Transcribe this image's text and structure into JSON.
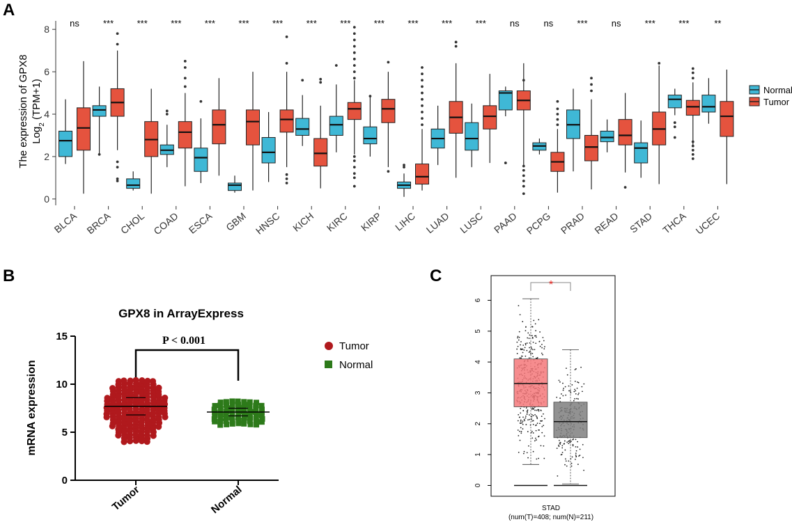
{
  "colors": {
    "normal_fill": "#3fb8d6",
    "tumor_fill": "#e5533e",
    "b_tumor": "#b0191d",
    "b_normal": "#2d7a1a",
    "c_tumor": "#f4787a",
    "c_normal": "#7f7f7f",
    "c_star": "#e8231f"
  },
  "chart_data": [
    {
      "panel": "A",
      "type": "box",
      "ylabel_line1": "The expression of GPX8",
      "ylabel_line2": "Log",
      "ylabel_sub": "2",
      "ylabel_rest": " (TPM+1)",
      "yticks": [
        0,
        2,
        4,
        6,
        8
      ],
      "ylim": [
        -0.3,
        8.4
      ],
      "legend": [
        "Normal",
        "Tumor"
      ],
      "categories": [
        "BLCA",
        "BRCA",
        "CHOL",
        "COAD",
        "ESCA",
        "GBM",
        "HNSC",
        "KICH",
        "KIRC",
        "KIRP",
        "LIHC",
        "LUAD",
        "LUSC",
        "PAAD",
        "PCPG",
        "PRAD",
        "READ",
        "STAD",
        "THCA",
        "UCEC"
      ],
      "significance": [
        "ns",
        "***",
        "***",
        "***",
        "***",
        "***",
        "***",
        "***",
        "***",
        "***",
        "***",
        "***",
        "***",
        "ns",
        "ns",
        "***",
        "ns",
        "***",
        "***",
        "**"
      ],
      "series": [
        {
          "name": "Normal",
          "boxes": [
            [
              1.65,
              2.0,
              2.75,
              3.2,
              4.7,
              []
            ],
            [
              2.1,
              3.9,
              4.2,
              4.4,
              5.3,
              [
                2.1
              ]
            ],
            [
              0.4,
              0.5,
              0.65,
              0.95,
              1.3,
              []
            ],
            [
              1.5,
              2.1,
              2.3,
              2.55,
              3.5,
              [
                4.0,
                4.15
              ]
            ],
            [
              0.75,
              1.3,
              1.95,
              2.4,
              3.8,
              [
                4.6
              ]
            ],
            [
              0.3,
              0.4,
              0.65,
              0.75,
              1.1,
              []
            ],
            [
              0.8,
              1.7,
              2.2,
              2.9,
              4.1,
              []
            ],
            [
              2.5,
              3.0,
              3.3,
              3.8,
              4.9,
              [
                5.6
              ]
            ],
            [
              2.2,
              3.0,
              3.5,
              3.9,
              5.4,
              [
                6.3
              ]
            ],
            [
              2.0,
              2.6,
              2.85,
              3.4,
              4.8,
              [
                4.85
              ]
            ],
            [
              0.1,
              0.5,
              0.65,
              0.8,
              1.2,
              [
                1.5,
                1.6
              ]
            ],
            [
              1.6,
              2.4,
              2.85,
              3.3,
              4.4,
              []
            ],
            [
              1.5,
              2.3,
              2.85,
              3.6,
              4.5,
              []
            ],
            [
              3.9,
              4.2,
              5.0,
              5.1,
              5.3,
              [
                1.7
              ]
            ],
            [
              2.1,
              2.3,
              2.5,
              2.65,
              2.85,
              []
            ],
            [
              1.3,
              2.85,
              3.5,
              4.2,
              5.2,
              []
            ],
            [
              2.2,
              2.7,
              2.9,
              3.2,
              3.75,
              []
            ],
            [
              1.0,
              1.7,
              2.4,
              2.65,
              3.7,
              []
            ],
            [
              3.95,
              4.3,
              4.7,
              4.9,
              5.2,
              [
                2.9,
                3.4,
                3.6
              ]
            ],
            [
              3.55,
              4.1,
              4.35,
              4.9,
              5.7,
              []
            ]
          ]
        },
        {
          "name": "Tumor",
          "boxes": [
            [
              0.25,
              2.3,
              3.35,
              4.3,
              6.5,
              []
            ],
            [
              2.3,
              3.9,
              4.55,
              5.2,
              7.0,
              [
                0.85,
                0.95,
                1.5,
                1.75,
                7.3,
                7.8
              ]
            ],
            [
              0.25,
              2.0,
              2.8,
              3.65,
              5.2,
              []
            ],
            [
              0.6,
              2.4,
              3.15,
              3.65,
              5.0,
              [
                5.3,
                5.7,
                6.2,
                6.5
              ]
            ],
            [
              1.1,
              2.6,
              3.5,
              4.2,
              5.7,
              []
            ],
            [
              0.4,
              2.55,
              3.65,
              4.2,
              6.0,
              []
            ],
            [
              1.5,
              3.15,
              3.75,
              4.2,
              6.0,
              [
                0.75,
                0.95,
                1.15,
                6.4,
                7.65
              ]
            ],
            [
              0.5,
              1.55,
              2.15,
              2.85,
              4.4,
              [
                5.5,
                5.65
              ]
            ],
            [
              2.1,
              3.75,
              4.25,
              4.55,
              5.6,
              [
                0.6,
                1.0,
                1.2,
                1.5,
                1.8,
                2.0,
                5.7,
                6.0,
                6.3,
                6.6,
                6.9,
                7.2,
                7.5,
                7.8,
                8.1
              ]
            ],
            [
              1.5,
              3.6,
              4.25,
              4.7,
              6.0,
              [
                1.3,
                6.45
              ]
            ],
            [
              0.4,
              0.7,
              1.05,
              1.65,
              3.3,
              [
                3.5,
                3.8,
                4.1,
                4.4,
                4.7,
                5.0,
                5.3,
                5.6,
                5.9,
                6.2
              ]
            ],
            [
              1.0,
              3.1,
              3.85,
              4.6,
              6.4,
              [
                7.2,
                7.4
              ]
            ],
            [
              1.7,
              3.3,
              3.9,
              4.4,
              5.9,
              []
            ],
            [
              1.6,
              4.2,
              4.65,
              5.1,
              6.4,
              [
                0.25,
                0.6,
                0.85,
                1.1,
                1.35,
                1.55,
                5.6
              ]
            ],
            [
              0.3,
              1.3,
              1.75,
              2.2,
              3.3,
              [
                3.5,
                3.75,
                4.0,
                4.25,
                4.6
              ]
            ],
            [
              0.45,
              1.8,
              2.45,
              3.0,
              4.7,
              [
                5.1,
                5.4,
                5.7
              ]
            ],
            [
              1.25,
              2.55,
              3.0,
              3.75,
              5.0,
              [
                0.55
              ]
            ],
            [
              0.7,
              2.55,
              3.3,
              4.1,
              6.3,
              [
                6.4
              ]
            ],
            [
              2.5,
              3.95,
              4.35,
              4.65,
              5.5,
              [
                1.9,
                2.1,
                2.3,
                2.5,
                2.7,
                5.7,
                5.95,
                6.15
              ]
            ],
            [
              0.7,
              2.95,
              3.9,
              4.6,
              6.1,
              []
            ]
          ]
        }
      ]
    },
    {
      "panel": "B",
      "type": "scatter",
      "title": "GPX8 in ArrayExpress",
      "ylabel": "mRNA expression",
      "categories": [
        "Tumor",
        "Normal"
      ],
      "yticks": [
        0,
        5,
        10,
        15
      ],
      "ylim": [
        0,
        15
      ],
      "p_label": "P < 0.001",
      "legend": [
        "Tumor",
        "Normal"
      ],
      "series": [
        {
          "name": "Tumor",
          "mean": 7.7,
          "min": 4.1,
          "max": 10.5,
          "sd_upper": 8.6,
          "sd_lower": 6.8
        },
        {
          "name": "Normal",
          "mean": 7.1,
          "min": 5.9,
          "max": 8.3,
          "sd_upper": 7.5,
          "sd_lower": 6.7
        }
      ]
    },
    {
      "panel": "C",
      "type": "box",
      "yticks": [
        0,
        1,
        2,
        3,
        4,
        5,
        6
      ],
      "ylim": [
        -0.35,
        6.8
      ],
      "xlabel_line1": "STAD",
      "xlabel_line2": "(num(T)=408; num(N)=211)",
      "significance": "*",
      "series": [
        {
          "name": "Tumor",
          "min": 0.68,
          "q1": 2.55,
          "median": 3.3,
          "q3": 4.1,
          "max": 6.05,
          "zero_line": 0
        },
        {
          "name": "Normal",
          "min": 0.05,
          "q1": 1.55,
          "median": 2.07,
          "q3": 2.7,
          "max": 4.4,
          "zero_line": 0
        }
      ]
    }
  ],
  "panels": {
    "a": "A",
    "b": "B",
    "c": "C"
  }
}
